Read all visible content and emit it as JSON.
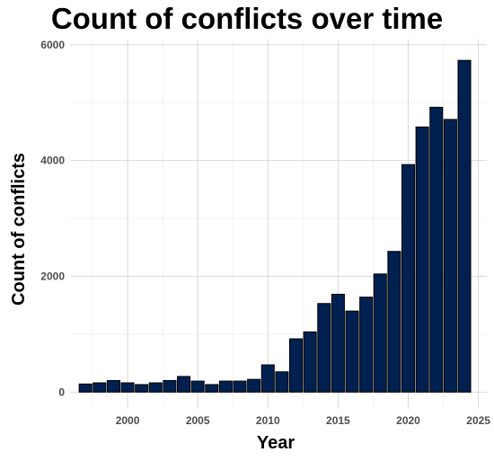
{
  "chart_data": {
    "type": "bar",
    "title": "Count of conflicts over time",
    "xlabel": "Year",
    "ylabel": "Count of conflicts",
    "x": [
      1997,
      1998,
      1999,
      2000,
      2001,
      2002,
      2003,
      2004,
      2005,
      2006,
      2007,
      2008,
      2009,
      2010,
      2011,
      2012,
      2013,
      2014,
      2015,
      2016,
      2017,
      2018,
      2019,
      2020,
      2021,
      2022,
      2023,
      2024
    ],
    "values": [
      140,
      160,
      200,
      160,
      130,
      160,
      200,
      270,
      190,
      130,
      190,
      190,
      220,
      470,
      350,
      920,
      1040,
      1530,
      1690,
      1400,
      1640,
      2040,
      2430,
      3930,
      4580,
      4920,
      4710,
      5730
    ],
    "xticks": [
      2000,
      2005,
      2010,
      2015,
      2020,
      2025
    ],
    "yticks": [
      0,
      2000,
      4000,
      6000
    ],
    "xlim": [
      1995.9,
      2025.6
    ],
    "ylim": [
      -290,
      6090
    ],
    "grid": true,
    "bar_color": "#002050",
    "bar_border_color": "#000000",
    "gridline_color": "#d9d9d9"
  }
}
